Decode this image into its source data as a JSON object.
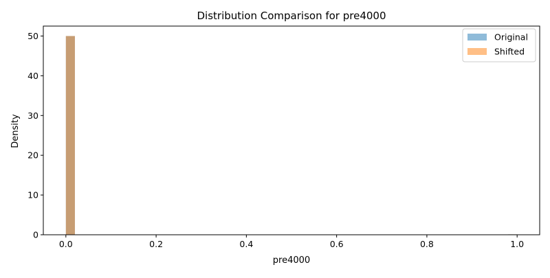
{
  "chart_data": {
    "type": "bar",
    "title": "Distribution Comparison for pre4000",
    "xlabel": "pre4000",
    "ylabel": "Density",
    "xlim": [
      -0.05,
      1.05
    ],
    "ylim": [
      0,
      52.5
    ],
    "xticks": [
      0.0,
      0.2,
      0.4,
      0.6,
      0.8,
      1.0
    ],
    "xtick_labels": [
      "0.0",
      "0.2",
      "0.4",
      "0.6",
      "0.8",
      "1.0"
    ],
    "yticks": [
      0,
      10,
      20,
      30,
      40,
      50
    ],
    "ytick_labels": [
      "0",
      "10",
      "20",
      "30",
      "40",
      "50"
    ],
    "bin_width": 0.02,
    "grid": false,
    "legend_position": "top-right",
    "series": [
      {
        "name": "Original",
        "color": "#1f77b4",
        "alpha": 0.5,
        "bins": [
          {
            "x0": 0.0,
            "x1": 0.02,
            "density": 50
          },
          {
            "x0": 0.98,
            "x1": 1.0,
            "density": 0.1
          }
        ]
      },
      {
        "name": "Shifted",
        "color": "#ff7f0e",
        "alpha": 0.5,
        "bins": [
          {
            "x0": 0.0,
            "x1": 0.02,
            "density": 50
          },
          {
            "x0": 0.98,
            "x1": 1.0,
            "density": 0.1
          }
        ]
      }
    ]
  }
}
